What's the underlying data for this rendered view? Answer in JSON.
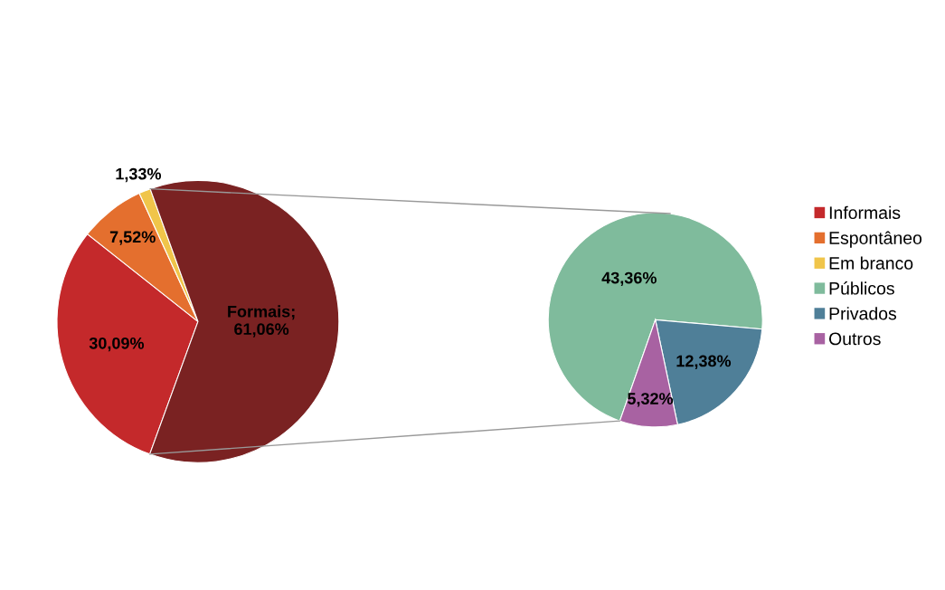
{
  "chart_data": [
    {
      "type": "pie",
      "categories": [
        "Informais",
        "Espontâneo",
        "Em branco",
        null
      ],
      "values": [
        30.09,
        7.52,
        1.33,
        61.06
      ],
      "colors": [
        "#c4292b",
        "#e46f2e",
        "#f0c54a",
        "#7a2222"
      ],
      "value_labels": [
        "30,09%",
        "7,52%",
        "1,33%",
        "Formais; 61,06%"
      ],
      "legend": "right"
    },
    {
      "type": "pie",
      "categories": [
        "Públicos",
        "Privados",
        "Outros"
      ],
      "values": [
        43.36,
        12.38,
        5.32
      ],
      "colors": [
        "#7fbb9c",
        "#4f7f98",
        "#a862a2"
      ],
      "value_labels": [
        "43,36%",
        "12,38%",
        "5,32%"
      ],
      "legend": "right"
    }
  ]
}
